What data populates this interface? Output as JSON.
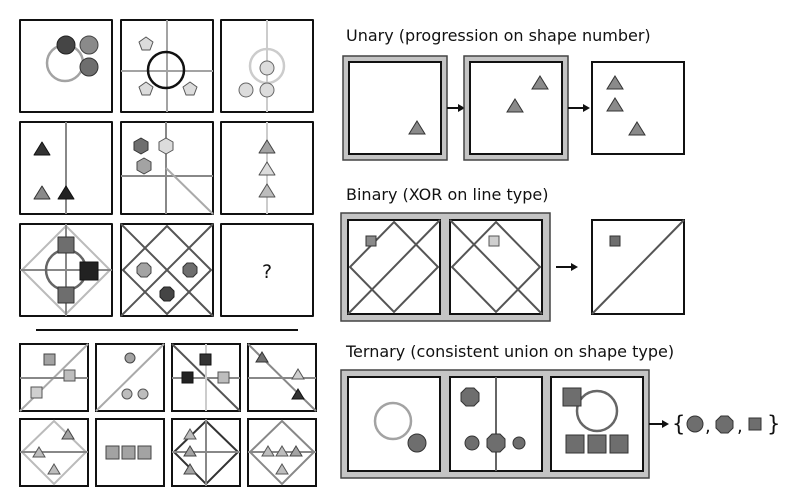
{
  "unary": {
    "title": "Unary (progression on shape number)"
  },
  "binary": {
    "title": "Binary (XOR on line type)"
  },
  "ternary": {
    "title": "Ternary (consistent union on shape type)"
  },
  "puzzle": {
    "missing_mark": "?"
  },
  "answer_set": {
    "open": "{",
    "close": "}",
    "sep1": ",",
    "sep2": ","
  },
  "colors": {
    "dark": "#454545",
    "mid": "#6e6e6e",
    "light": "#a3a3a3",
    "pale": "#cccccc",
    "frame": "#c4c4c4",
    "black": "#111111"
  }
}
